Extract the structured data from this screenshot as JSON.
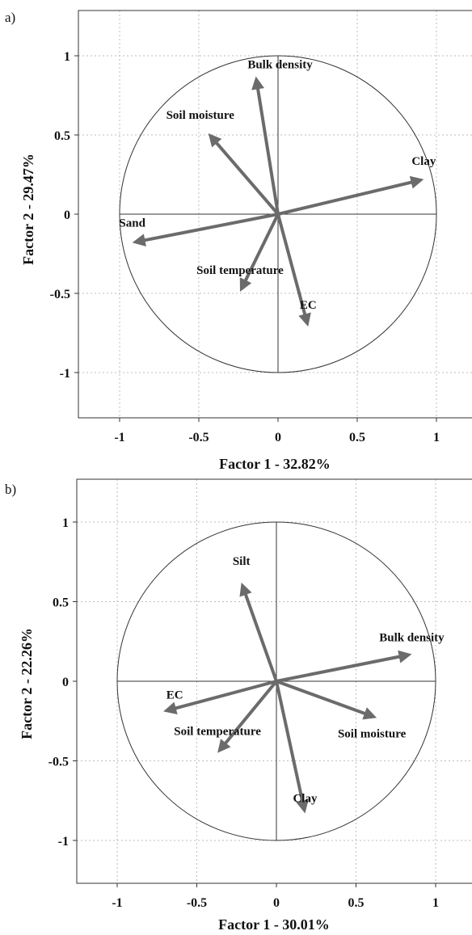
{
  "chart_data": [
    {
      "type": "scatter",
      "panel_label": "a)",
      "xlabel": "Factor 1 - 32.82%",
      "ylabel": "Factor 2 - 29.47%",
      "xlim": [
        -1.25,
        1.25
      ],
      "ylim": [
        -1.27,
        1.27
      ],
      "xticks": [
        -1,
        -0.5,
        0,
        0.5,
        1
      ],
      "yticks": [
        1,
        0.5,
        0,
        -0.5,
        -1
      ],
      "xtick_labels": [
        "-1",
        "-0.5",
        "0",
        "0.5",
        "1"
      ],
      "ytick_labels": [
        "1",
        "0.5",
        "0",
        "-0.5",
        "-1"
      ],
      "grid": true,
      "unit_circle": true,
      "vectors": [
        {
          "name": "Bulk density",
          "x": -0.14,
          "y": 0.87
        },
        {
          "name": "Soil moisture",
          "x": -0.44,
          "y": 0.51
        },
        {
          "name": "Clay",
          "x": 0.92,
          "y": 0.22
        },
        {
          "name": "Sand",
          "x": -0.92,
          "y": -0.18
        },
        {
          "name": "Soil temperature",
          "x": -0.24,
          "y": -0.49
        },
        {
          "name": "EC",
          "x": 0.19,
          "y": -0.71
        }
      ]
    },
    {
      "type": "scatter",
      "panel_label": "b)",
      "xlabel": "Factor 1 - 30.01%",
      "ylabel": "Factor 2 - 22.26%",
      "xlim": [
        -1.25,
        1.25
      ],
      "ylim": [
        -1.27,
        1.27
      ],
      "xticks": [
        -1,
        -0.5,
        0,
        0.5,
        1
      ],
      "yticks": [
        1,
        0.5,
        0,
        -0.5,
        -1
      ],
      "xtick_labels": [
        "-1",
        "-0.5",
        "0",
        "0.5",
        "1"
      ],
      "ytick_labels": [
        "1",
        "0.5",
        "0",
        "-0.5",
        "-1"
      ],
      "grid": true,
      "unit_circle": true,
      "vectors": [
        {
          "name": "Silt",
          "x": -0.22,
          "y": 0.62
        },
        {
          "name": "Bulk density",
          "x": 0.85,
          "y": 0.17
        },
        {
          "name": "Soil moisture",
          "x": 0.63,
          "y": -0.23
        },
        {
          "name": "EC",
          "x": -0.71,
          "y": -0.19
        },
        {
          "name": "Soil temperature",
          "x": -0.37,
          "y": -0.45
        },
        {
          "name": "Clay",
          "x": 0.18,
          "y": -0.83
        }
      ]
    }
  ]
}
